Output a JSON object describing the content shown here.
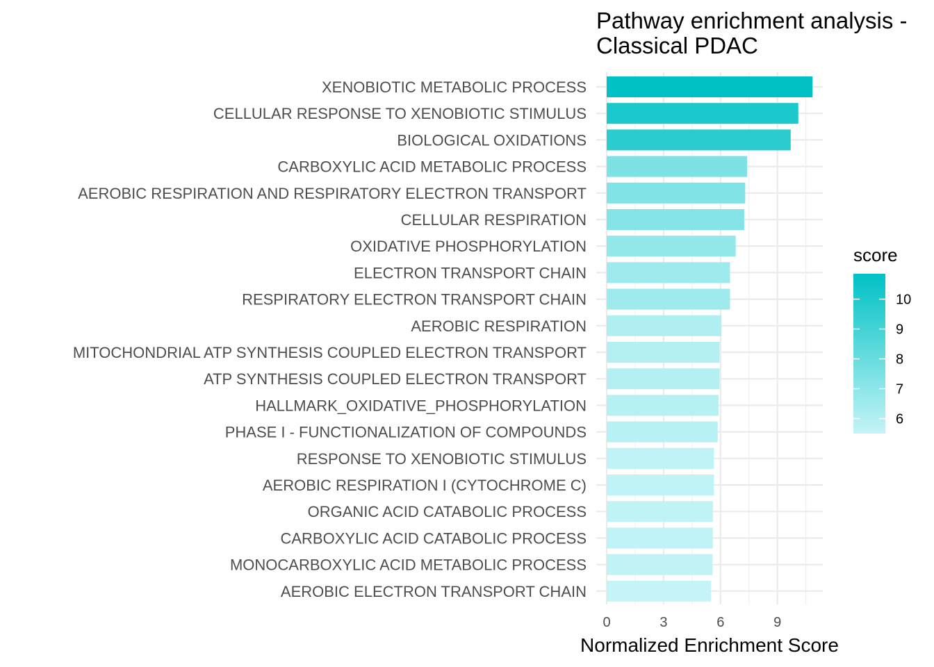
{
  "chart_data": {
    "type": "bar",
    "orientation": "horizontal",
    "title": [
      "Pathway enrichment analysis -",
      "Classical PDAC"
    ],
    "xlabel": "Normalized Enrichment Score",
    "ylabel": "",
    "xlim": [
      0,
      11.5
    ],
    "xticks": [
      0,
      3,
      6,
      9
    ],
    "grid": true,
    "categories": [
      "XENOBIOTIC METABOLIC PROCESS",
      "CELLULAR RESPONSE TO XENOBIOTIC STIMULUS",
      "BIOLOGICAL OXIDATIONS",
      "CARBOXYLIC ACID METABOLIC PROCESS",
      "AEROBIC RESPIRATION AND RESPIRATORY ELECTRON TRANSPORT",
      "CELLULAR RESPIRATION",
      "OXIDATIVE PHOSPHORYLATION",
      "ELECTRON TRANSPORT CHAIN",
      "RESPIRATORY ELECTRON TRANSPORT CHAIN",
      "AEROBIC RESPIRATION",
      "MITOCHONDRIAL ATP SYNTHESIS COUPLED ELECTRON TRANSPORT",
      "ATP SYNTHESIS COUPLED ELECTRON TRANSPORT",
      "HALLMARK_OXIDATIVE_PHOSPHORYLATION",
      "PHASE I - FUNCTIONALIZATION OF COMPOUNDS",
      "RESPONSE TO XENOBIOTIC STIMULUS",
      "AEROBIC RESPIRATION I (CYTOCHROME C)",
      "ORGANIC ACID CATABOLIC PROCESS",
      "CARBOXYLIC ACID CATABOLIC PROCESS",
      "MONOCARBOXYLIC ACID METABOLIC PROCESS",
      "AEROBIC ELECTRON TRANSPORT CHAIN"
    ],
    "values": [
      10.85,
      10.1,
      9.7,
      7.4,
      7.3,
      7.25,
      6.8,
      6.5,
      6.5,
      6.05,
      5.95,
      5.95,
      5.9,
      5.85,
      5.65,
      5.65,
      5.6,
      5.6,
      5.58,
      5.5
    ],
    "legend": {
      "title": "score",
      "position": "right",
      "ticks": [
        6,
        7,
        8,
        9,
        10
      ],
      "range": [
        5.5,
        10.85
      ],
      "low_color": "#c4f4f6",
      "high_color": "#00c1c5"
    }
  }
}
